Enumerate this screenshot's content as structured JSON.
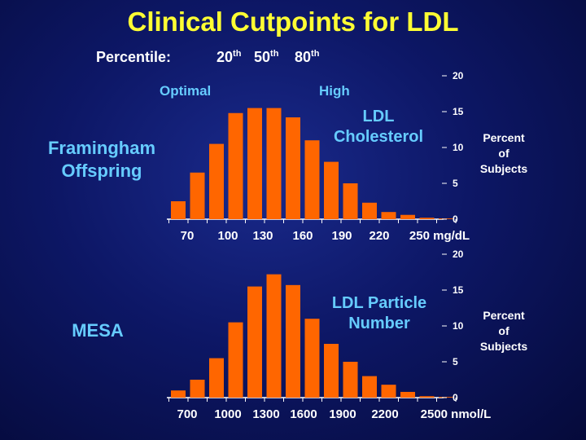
{
  "title": "Clinical Cutpoints for LDL",
  "percentile": {
    "label": "Percentile:",
    "values": [
      "20",
      "50",
      "80"
    ],
    "suffix": "th"
  },
  "categories": {
    "optimal": "Optimal",
    "high": "High"
  },
  "colors": {
    "bar": "#ff6600",
    "title": "#ffff33",
    "accent": "#66ccff",
    "background": "#0d1766"
  },
  "chart_data": [
    {
      "type": "bar",
      "group_label": [
        "Framingham",
        "Offspring"
      ],
      "inner_label": [
        "LDL",
        "Cholesterol"
      ],
      "ylabel": [
        "Percent",
        "of",
        "Subjects"
      ],
      "ylim": [
        0,
        20
      ],
      "yticks": [
        "0",
        "5",
        "10",
        "15",
        "20"
      ],
      "x_tick_labels": [
        "70",
        "100",
        "130",
        "160",
        "190",
        "220",
        "250 mg/dL"
      ],
      "values": [
        2.5,
        6.5,
        10.5,
        14.8,
        15.5,
        15.5,
        14.2,
        11.0,
        8.0,
        5.0,
        2.3,
        1.0,
        0.6,
        0.2,
        0.1
      ]
    },
    {
      "type": "bar",
      "group_label": [
        "MESA"
      ],
      "inner_label": [
        "LDL Particle",
        "Number"
      ],
      "ylabel": [
        "Percent",
        "of",
        "Subjects"
      ],
      "ylim": [
        0,
        20
      ],
      "yticks": [
        "0",
        "5",
        "10",
        "15",
        "20"
      ],
      "x_tick_labels": [
        "700",
        "1000",
        "1300",
        "1600",
        "1900",
        "2200",
        "2500 nmol/L"
      ],
      "values": [
        1.0,
        2.5,
        5.5,
        10.5,
        15.5,
        17.2,
        15.7,
        11.0,
        7.5,
        5.0,
        3.0,
        1.8,
        0.8,
        0.2,
        0.1
      ]
    }
  ]
}
